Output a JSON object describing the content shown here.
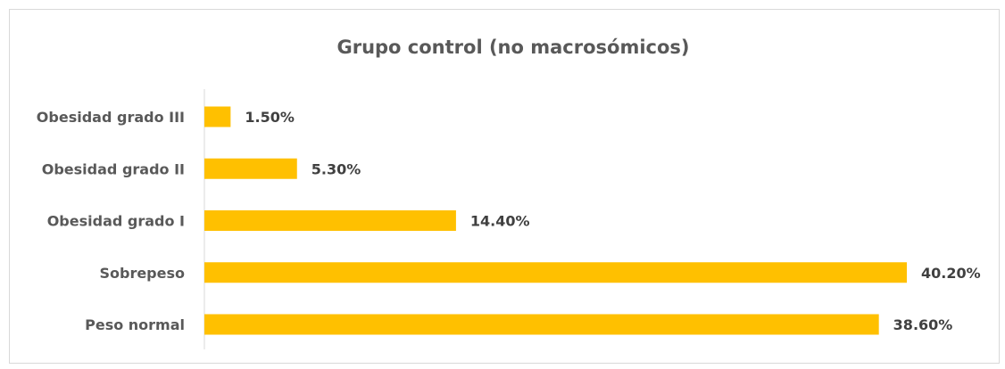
{
  "chart_data": {
    "type": "bar",
    "orientation": "horizontal",
    "title": "Grupo control (no macrosómicos)",
    "categories": [
      "Obesidad grado III",
      "Obesidad grado II",
      "Obesidad grado I",
      "Sobrepeso",
      "Peso normal"
    ],
    "values": [
      1.5,
      5.3,
      14.4,
      40.2,
      38.6
    ],
    "data_labels": [
      "1.50%",
      "5.30%",
      "14.40%",
      "40.20%",
      "38.60%"
    ],
    "unit": "%",
    "xlim": [
      0,
      40.2
    ],
    "bar_color": "#FFC000",
    "grid": false,
    "legend": "none"
  }
}
